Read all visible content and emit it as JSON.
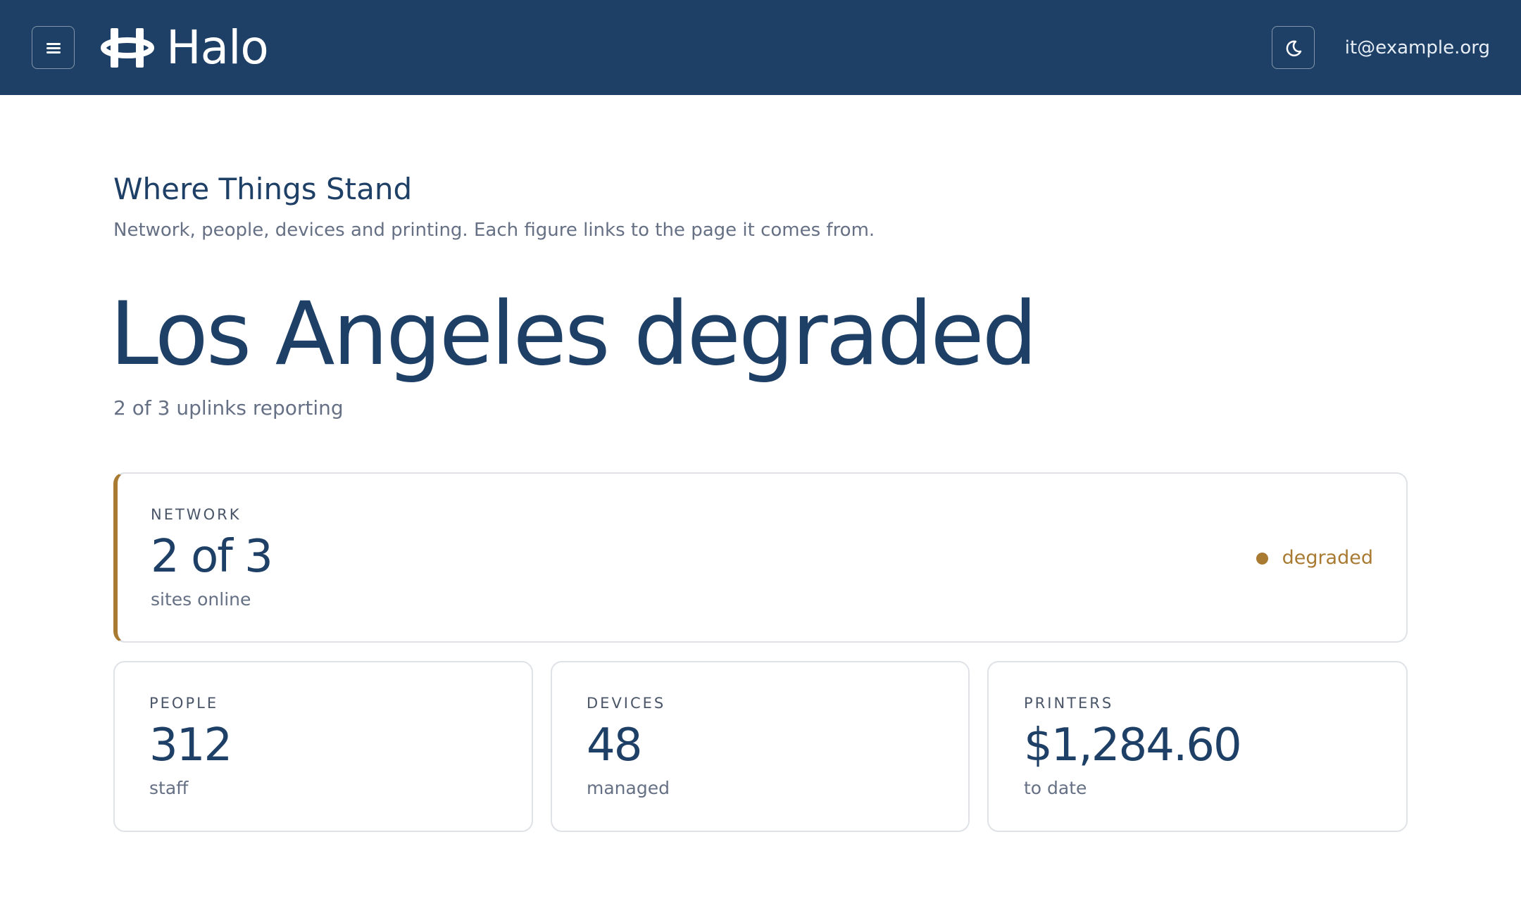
{
  "header": {
    "brand": "Halo",
    "user": "it@example.org"
  },
  "section": {
    "title": "Where Things Stand",
    "subtitle": "Network, people, devices and printing. Each figure links to the page it comes from."
  },
  "headline": {
    "text": "Los Angeles degraded",
    "caption": "2 of 3 uplinks reporting"
  },
  "network": {
    "label": "NETWORK",
    "value": "2 of 3",
    "caption": "sites online",
    "status": "degraded"
  },
  "cards": [
    {
      "label": "PEOPLE",
      "value": "312",
      "caption": "staff"
    },
    {
      "label": "DEVICES",
      "value": "48",
      "caption": "managed"
    },
    {
      "label": "PRINTERS",
      "value": "$1,284.60",
      "caption": "to date"
    }
  ]
}
